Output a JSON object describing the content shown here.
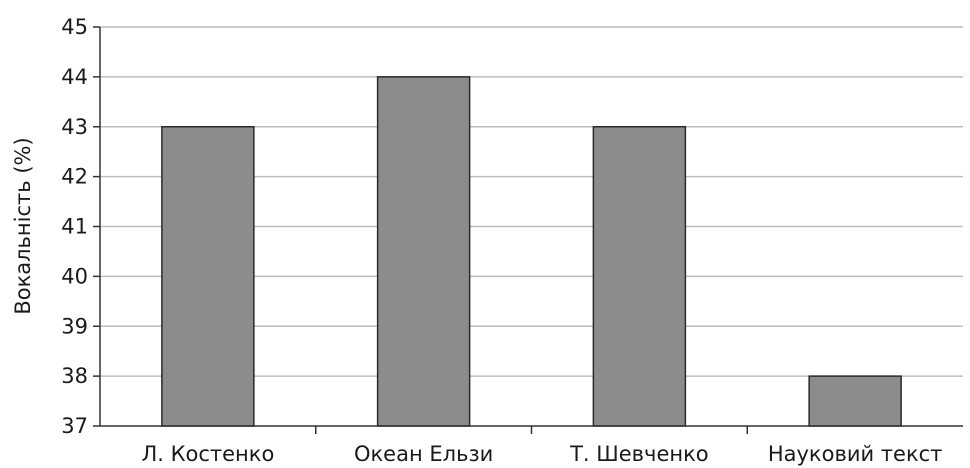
{
  "chart_data": {
    "type": "bar",
    "categories": [
      "Л. Костенко",
      "Океан Ельзи",
      "Т. Шевченко",
      "Науковий текст"
    ],
    "values": [
      43,
      44,
      43,
      38
    ],
    "ylabel": "Вокальність (%)",
    "xlabel": "",
    "ylim": [
      37,
      45
    ],
    "yticks": [
      37,
      38,
      39,
      40,
      41,
      42,
      43,
      44,
      45
    ],
    "grid": true,
    "bar_color": "#8c8c8c",
    "grid_color": "#bdbdbd"
  }
}
